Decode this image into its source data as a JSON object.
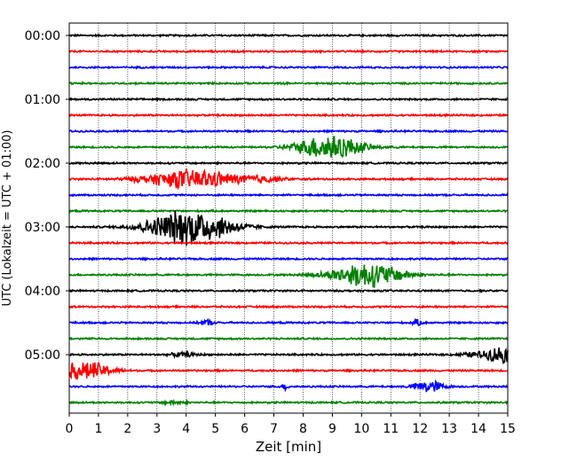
{
  "chart_data": {
    "type": "line",
    "xlabel": "Zeit  [min]",
    "ylabel": "UTC (Lokalzeit = UTC + 01:00)",
    "xlim": [
      0,
      15
    ],
    "x_ticks": [
      "0",
      "1",
      "2",
      "3",
      "4",
      "5",
      "6",
      "7",
      "8",
      "9",
      "10",
      "11",
      "12",
      "13",
      "14",
      "15"
    ],
    "y_tick_labels": [
      "00:00",
      "01:00",
      "02:00",
      "03:00",
      "04:00",
      "05:00"
    ],
    "grid_x": true,
    "rows_per_hour": 4,
    "row_count": 24,
    "trace_colors": [
      "#000000",
      "#ff0000",
      "#0000ff",
      "#008000"
    ],
    "noise_amplitude": 0.06,
    "events": [
      {
        "row": 7,
        "t_center": 8.9,
        "t_width": 0.75,
        "amplitude": 0.9
      },
      {
        "row": 9,
        "t_center": 4.2,
        "t_width": 1.1,
        "amplitude": 0.65
      },
      {
        "row": 9,
        "t_center": 6.6,
        "t_width": 0.5,
        "amplitude": 0.18
      },
      {
        "row": 12,
        "t_center": 4.0,
        "t_width": 0.9,
        "amplitude": 1.2
      },
      {
        "row": 12,
        "t_center": 5.3,
        "t_width": 0.6,
        "amplitude": 0.2
      },
      {
        "row": 15,
        "t_center": 10.2,
        "t_width": 0.85,
        "amplitude": 0.85
      },
      {
        "row": 18,
        "t_center": 4.7,
        "t_width": 0.15,
        "amplitude": 0.2
      },
      {
        "row": 18,
        "t_center": 11.9,
        "t_width": 0.12,
        "amplitude": 0.18
      },
      {
        "row": 20,
        "t_center": 14.8,
        "t_width": 0.35,
        "amplitude": 0.55
      },
      {
        "row": 20,
        "t_center": 13.9,
        "t_width": 0.4,
        "amplitude": 0.15
      },
      {
        "row": 20,
        "t_center": 3.9,
        "t_width": 0.3,
        "amplitude": 0.13
      },
      {
        "row": 21,
        "t_center": 0.55,
        "t_width": 0.6,
        "amplitude": 0.65
      },
      {
        "row": 22,
        "t_center": 12.3,
        "t_width": 0.35,
        "amplitude": 0.42
      },
      {
        "row": 22,
        "t_center": 7.4,
        "t_width": 0.08,
        "amplitude": 0.22
      },
      {
        "row": 23,
        "t_center": 3.6,
        "t_width": 0.3,
        "amplitude": 0.1
      }
    ]
  }
}
